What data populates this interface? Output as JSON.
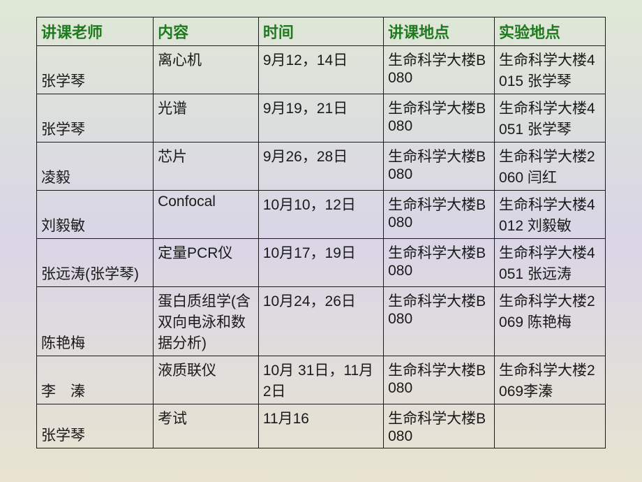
{
  "header_fontsize": 22,
  "cell_fontsize": 21,
  "header_color": "#1f7a1f",
  "cell_color": "#1a1a1a",
  "border_color": "#1a1a1a",
  "columns": [
    {
      "key": "teacher",
      "label": "讲课老师"
    },
    {
      "key": "content",
      "label": "内容"
    },
    {
      "key": "time",
      "label": "时间"
    },
    {
      "key": "lecture",
      "label": "讲课地点"
    },
    {
      "key": "lab",
      "label": "实验地点"
    }
  ],
  "rows": [
    {
      "teacher": "张学琴",
      "content": "离心机",
      "time": "9月12，14日",
      "lecture": "生命科学大楼B080",
      "lab": "生命科学大楼4015 张学琴"
    },
    {
      "teacher": "张学琴",
      "content": "光谱",
      "time": "9月19，21日",
      "lecture": "生命科学大楼B080",
      "lab": "生命科学大楼4051 张学琴"
    },
    {
      "teacher": "凌毅",
      "content": "芯片",
      "time": "9月26，28日",
      "lecture": "生命科学大楼B080",
      "lab": "生命科学大楼2060 闫红"
    },
    {
      "teacher": "刘毅敏",
      "content": "Confocal",
      "time": "10月10，12日",
      "lecture": "生命科学大楼B080",
      "lab": "生命科学大楼4012 刘毅敏"
    },
    {
      "teacher": "张远涛(张学琴)",
      "content": "定量PCR仪",
      "time": "10月17，19日",
      "lecture": "生命科学大楼B080",
      "lab": "生命科学大楼4051 张远涛"
    },
    {
      "teacher": "陈艳梅",
      "content": "蛋白质组学(含双向电泳和数据分析)",
      "time": "10月24，26日",
      "lecture": "生命科学大楼B080",
      "lab": "生命科学大楼2069 陈艳梅"
    },
    {
      "teacher": "李　溱",
      "content": "液质联仪",
      "time": "10月 31日，11月2日",
      "lecture": "生命科学大楼B080",
      "lab": "生命科学大楼2069李溱"
    },
    {
      "teacher": "张学琴",
      "content": "考试",
      "time": "11月16",
      "lecture": "生命科学大楼B080",
      "lab": ""
    }
  ]
}
